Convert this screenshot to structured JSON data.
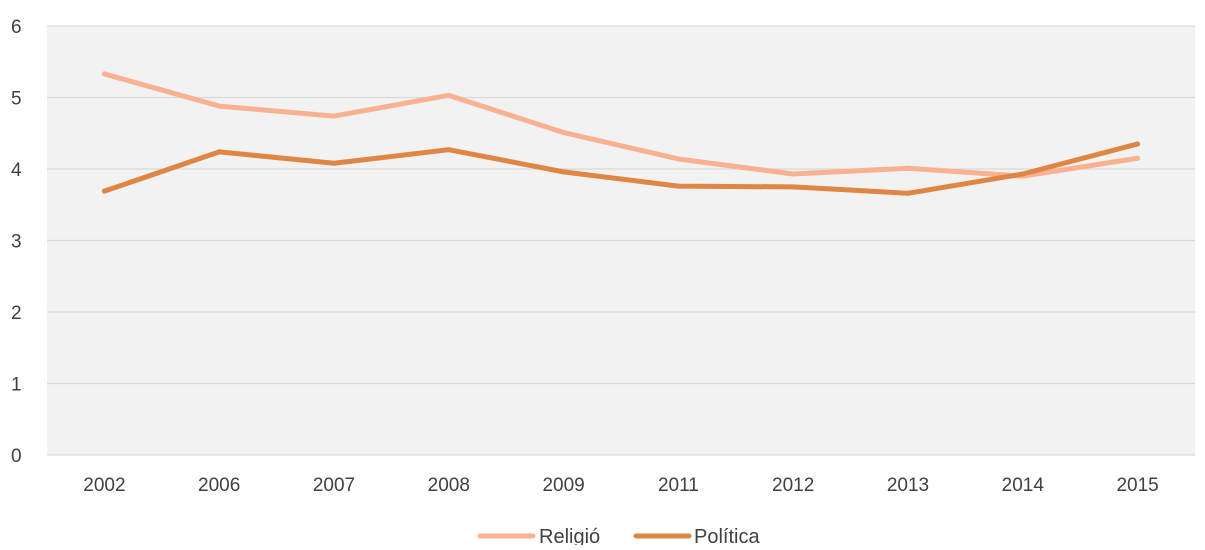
{
  "chart_data": {
    "type": "line",
    "categories": [
      "2002",
      "2006",
      "2007",
      "2008",
      "2009",
      "2011",
      "2012",
      "2013",
      "2014",
      "2015"
    ],
    "series": [
      {
        "name": "Religió",
        "color": "#f8b191",
        "values": [
          5.33,
          4.88,
          4.74,
          5.03,
          4.51,
          4.14,
          3.93,
          4.01,
          3.9,
          4.15
        ]
      },
      {
        "name": "Política",
        "color": "#df8644",
        "values": [
          3.69,
          4.24,
          4.08,
          4.27,
          3.96,
          3.76,
          3.75,
          3.66,
          3.93,
          4.35
        ]
      }
    ],
    "ylim": [
      0,
      6
    ],
    "yticks": [
      "0",
      "1",
      "2",
      "3",
      "4",
      "5",
      "6"
    ],
    "title": "",
    "xlabel": "",
    "ylabel": "",
    "grid": "horizontal",
    "legend_position": "bottom",
    "plot_background": "#f2f2f2",
    "gridline_color": "#d9d9d9"
  }
}
